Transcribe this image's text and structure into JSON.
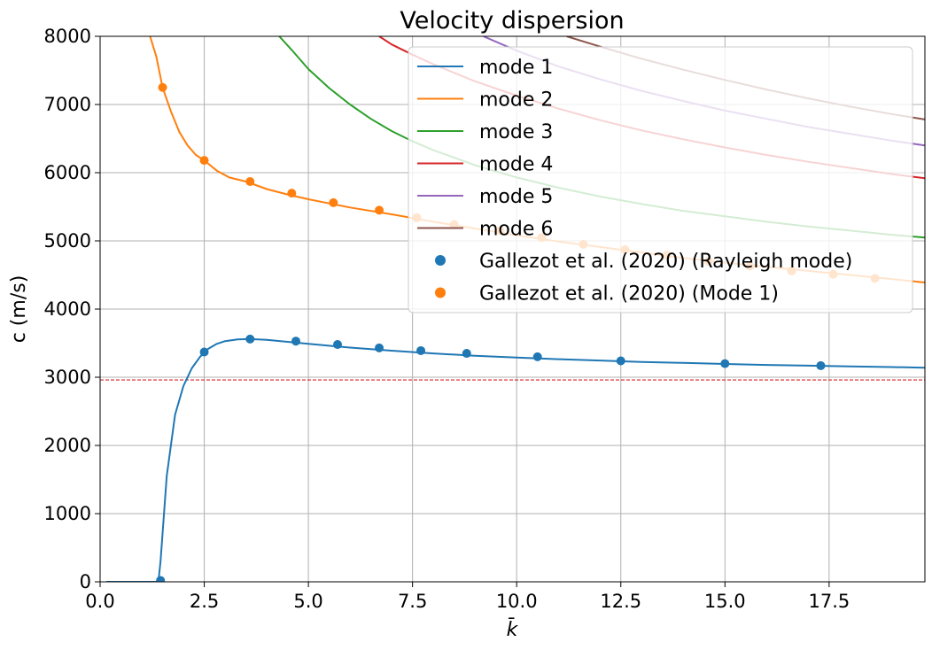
{
  "chart_data": {
    "type": "line",
    "title": "Velocity dispersion",
    "xlabel": "k̄",
    "ylabel": "c (m/s)",
    "xlim": [
      0.0,
      19.8
    ],
    "ylim": [
      0,
      8000
    ],
    "grid": true,
    "x_ticks": [
      "0.0",
      "2.5",
      "5.0",
      "7.5",
      "10.0",
      "12.5",
      "15.0",
      "17.5"
    ],
    "y_ticks": [
      "0",
      "1000",
      "2000",
      "3000",
      "4000",
      "5000",
      "6000",
      "7000",
      "8000"
    ],
    "legend_position": "upper-right",
    "reference_line": {
      "y": 2960,
      "color": "#d62728",
      "style": "dashed"
    },
    "series": [
      {
        "name": "mode 1",
        "kind": "line",
        "color": "#1f77b4",
        "opacity": 1,
        "x": [
          0.15,
          1.0,
          1.4,
          1.45,
          1.6,
          1.8,
          2.0,
          2.2,
          2.4,
          2.6,
          2.8,
          3.0,
          3.3,
          3.6,
          4.0,
          4.5,
          5.0,
          6.0,
          7.0,
          8.0,
          9.0,
          10.0,
          11.0,
          12.0,
          13.0,
          14.0,
          15.0,
          16.0,
          17.0,
          18.0,
          19.0,
          19.8
        ],
        "y": [
          0,
          0,
          0,
          300,
          1550,
          2450,
          2870,
          3130,
          3300,
          3420,
          3490,
          3530,
          3555,
          3560,
          3550,
          3520,
          3490,
          3435,
          3390,
          3350,
          3315,
          3290,
          3265,
          3245,
          3225,
          3210,
          3195,
          3180,
          3170,
          3160,
          3150,
          3140
        ]
      },
      {
        "name": "mode 2",
        "kind": "line",
        "color": "#ff7f0e",
        "opacity": 1,
        "x": [
          1.2,
          1.35,
          1.5,
          1.7,
          1.9,
          2.1,
          2.3,
          2.5,
          2.8,
          3.1,
          3.5,
          4.0,
          4.5,
          5.0,
          5.5,
          6.0,
          7.0,
          8.0,
          9.0,
          10.0,
          11.0,
          12.0,
          13.0,
          14.0,
          15.0,
          16.0,
          17.0,
          18.0,
          19.0,
          19.8
        ],
        "y": [
          8000,
          7700,
          7250,
          6900,
          6600,
          6400,
          6260,
          6180,
          6030,
          5930,
          5870,
          5760,
          5680,
          5610,
          5550,
          5490,
          5390,
          5280,
          5180,
          5080,
          4990,
          4910,
          4830,
          4750,
          4680,
          4620,
          4560,
          4500,
          4440,
          4390
        ]
      },
      {
        "name": "mode 3",
        "kind": "line",
        "color": "#2ca02c",
        "opacity": 1,
        "x": [
          4.3,
          4.6,
          5.0,
          5.5,
          6.0,
          6.5,
          7.0,
          7.5,
          8.0,
          9.0,
          10.0,
          11.0,
          12.0,
          13.0,
          14.0,
          15.0,
          16.0,
          17.0,
          18.0,
          19.0,
          19.8
        ],
        "y": [
          8000,
          7800,
          7520,
          7240,
          7000,
          6790,
          6610,
          6460,
          6330,
          6110,
          5930,
          5780,
          5650,
          5540,
          5440,
          5360,
          5280,
          5210,
          5150,
          5090,
          5050
        ]
      },
      {
        "name": "mode 4",
        "kind": "line",
        "color": "#d62728",
        "opacity": 1,
        "x": [
          6.7,
          7.0,
          7.5,
          8.0,
          9.0,
          10.0,
          11.0,
          12.0,
          13.0,
          14.0,
          15.0,
          16.0,
          17.0,
          18.0,
          19.0,
          19.8
        ],
        "y": [
          8000,
          7880,
          7730,
          7590,
          7340,
          7130,
          6940,
          6770,
          6620,
          6490,
          6370,
          6260,
          6160,
          6070,
          5980,
          5920
        ]
      },
      {
        "name": "mode 5",
        "kind": "line",
        "color": "#9467bd",
        "opacity": 1,
        "x": [
          9.2,
          10.0,
          11.0,
          12.0,
          13.0,
          14.0,
          15.0,
          16.0,
          17.0,
          18.0,
          19.0,
          19.8
        ],
        "y": [
          8000,
          7790,
          7560,
          7370,
          7200,
          7050,
          6910,
          6790,
          6670,
          6570,
          6470,
          6400
        ]
      },
      {
        "name": "mode 6",
        "kind": "line",
        "color": "#8c564b",
        "opacity": 1,
        "x": [
          11.2,
          12.0,
          13.0,
          14.0,
          15.0,
          16.0,
          17.0,
          18.0,
          19.0,
          19.8
        ],
        "y": [
          8000,
          7850,
          7670,
          7510,
          7360,
          7220,
          7090,
          6970,
          6860,
          6780
        ]
      },
      {
        "name": "Gallezot et al. (2020) (Rayleigh mode)",
        "kind": "scatter",
        "color": "#1f77b4",
        "x": [
          1.45,
          2.5,
          3.6,
          4.7,
          5.7,
          6.7,
          7.7,
          8.8,
          10.5,
          12.5,
          15.0,
          17.3
        ],
        "y": [
          20,
          3370,
          3560,
          3530,
          3480,
          3430,
          3390,
          3350,
          3300,
          3240,
          3200,
          3170
        ]
      },
      {
        "name": "Gallezot et al. (2020) (Mode 1)",
        "kind": "scatter",
        "color": "#ff7f0e",
        "x": [
          1.5,
          2.5,
          3.6,
          4.6,
          5.6,
          6.7,
          7.6,
          8.5,
          9.6,
          10.6,
          11.6,
          12.6,
          13.6,
          14.6,
          15.6,
          16.6,
          17.6,
          18.6
        ],
        "y": [
          7250,
          6180,
          5870,
          5700,
          5560,
          5450,
          5340,
          5240,
          5150,
          5050,
          4950,
          4870,
          4790,
          4700,
          4630,
          4560,
          4510,
          4450
        ]
      }
    ]
  }
}
